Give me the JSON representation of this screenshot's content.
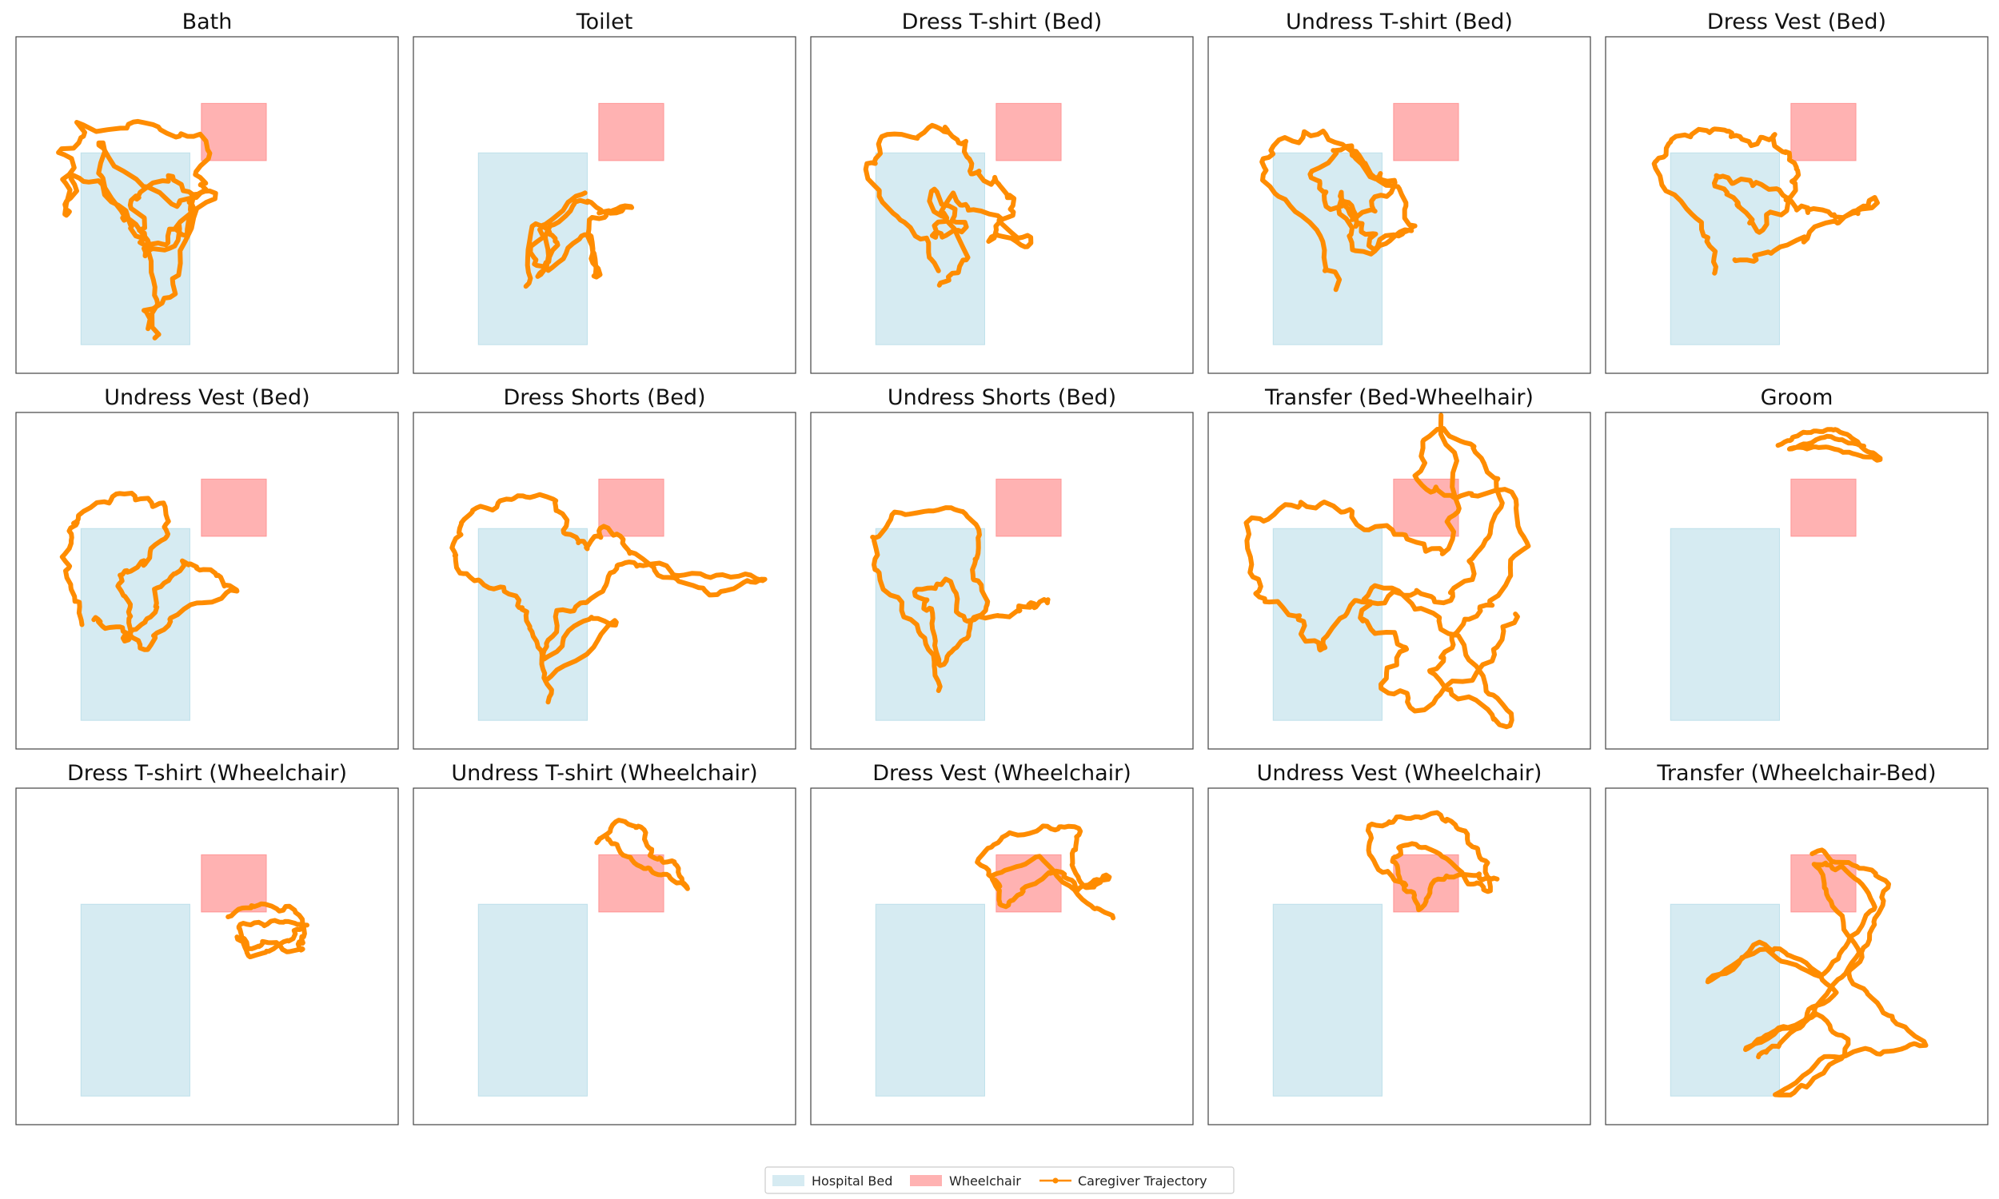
{
  "colors": {
    "bed": "#add8e6",
    "wheelchair": "#ff7f7f",
    "trajectory": "#ff8c00",
    "frame": "#444444"
  },
  "legend": {
    "bed_label": "Hospital Bed",
    "wheelchair_label": "Wheelchair",
    "trajectory_label": "Caregiver Trajectory"
  },
  "chart_data": [
    {
      "type": "line",
      "title": "Bath",
      "anchors": [
        [
          0.38,
          0.92
        ],
        [
          0.36,
          0.7
        ],
        [
          0.3,
          0.55
        ],
        [
          0.18,
          0.4
        ],
        [
          0.13,
          0.55
        ],
        [
          0.12,
          0.35
        ],
        [
          0.18,
          0.28
        ],
        [
          0.36,
          0.26
        ],
        [
          0.48,
          0.32
        ],
        [
          0.5,
          0.45
        ],
        [
          0.44,
          0.58
        ],
        [
          0.34,
          0.62
        ],
        [
          0.3,
          0.48
        ],
        [
          0.4,
          0.42
        ],
        [
          0.46,
          0.5
        ],
        [
          0.36,
          0.66
        ],
        [
          0.28,
          0.52
        ],
        [
          0.2,
          0.3
        ],
        [
          0.38,
          0.5
        ],
        [
          0.52,
          0.44
        ],
        [
          0.4,
          0.72
        ],
        [
          0.34,
          0.88
        ]
      ],
      "jitter": 0.07,
      "seed": 11
    },
    {
      "type": "line",
      "title": "Toilet",
      "anchors": [
        [
          0.3,
          0.75
        ],
        [
          0.32,
          0.55
        ],
        [
          0.38,
          0.6
        ],
        [
          0.34,
          0.72
        ],
        [
          0.31,
          0.62
        ],
        [
          0.44,
          0.48
        ],
        [
          0.5,
          0.52
        ],
        [
          0.57,
          0.5
        ],
        [
          0.46,
          0.55
        ],
        [
          0.48,
          0.72
        ],
        [
          0.47,
          0.58
        ],
        [
          0.36,
          0.7
        ],
        [
          0.33,
          0.56
        ],
        [
          0.45,
          0.46
        ]
      ],
      "jitter": 0.035,
      "seed": 23
    },
    {
      "type": "line",
      "title": "Dress T-shirt (Bed)",
      "anchors": [
        [
          0.35,
          0.7
        ],
        [
          0.26,
          0.55
        ],
        [
          0.15,
          0.4
        ],
        [
          0.2,
          0.3
        ],
        [
          0.34,
          0.26
        ],
        [
          0.38,
          0.3
        ],
        [
          0.42,
          0.4
        ],
        [
          0.5,
          0.44
        ],
        [
          0.54,
          0.5
        ],
        [
          0.46,
          0.6
        ],
        [
          0.58,
          0.62
        ],
        [
          0.46,
          0.52
        ],
        [
          0.36,
          0.48
        ],
        [
          0.32,
          0.6
        ],
        [
          0.4,
          0.56
        ],
        [
          0.3,
          0.46
        ],
        [
          0.42,
          0.66
        ],
        [
          0.34,
          0.74
        ]
      ],
      "jitter": 0.05,
      "seed": 37
    },
    {
      "type": "line",
      "title": "Undress T-shirt (Bed)",
      "anchors": [
        [
          0.34,
          0.74
        ],
        [
          0.28,
          0.6
        ],
        [
          0.14,
          0.42
        ],
        [
          0.16,
          0.32
        ],
        [
          0.3,
          0.28
        ],
        [
          0.4,
          0.36
        ],
        [
          0.48,
          0.46
        ],
        [
          0.4,
          0.54
        ],
        [
          0.32,
          0.5
        ],
        [
          0.28,
          0.4
        ],
        [
          0.36,
          0.32
        ],
        [
          0.42,
          0.4
        ],
        [
          0.5,
          0.44
        ],
        [
          0.54,
          0.56
        ],
        [
          0.44,
          0.62
        ],
        [
          0.4,
          0.55
        ],
        [
          0.34,
          0.46
        ],
        [
          0.38,
          0.66
        ],
        [
          0.54,
          0.58
        ]
      ],
      "jitter": 0.05,
      "seed": 41
    },
    {
      "type": "line",
      "title": "Dress Vest (Bed)",
      "anchors": [
        [
          0.3,
          0.72
        ],
        [
          0.26,
          0.58
        ],
        [
          0.14,
          0.4
        ],
        [
          0.18,
          0.3
        ],
        [
          0.3,
          0.26
        ],
        [
          0.36,
          0.32
        ],
        [
          0.44,
          0.3
        ],
        [
          0.5,
          0.38
        ],
        [
          0.48,
          0.48
        ],
        [
          0.4,
          0.58
        ],
        [
          0.34,
          0.5
        ],
        [
          0.28,
          0.42
        ],
        [
          0.4,
          0.44
        ],
        [
          0.52,
          0.52
        ],
        [
          0.62,
          0.54
        ],
        [
          0.72,
          0.48
        ],
        [
          0.56,
          0.58
        ],
        [
          0.44,
          0.64
        ],
        [
          0.34,
          0.66
        ]
      ],
      "jitter": 0.05,
      "seed": 53
    },
    {
      "type": "line",
      "title": "Undress Vest (Bed)",
      "anchors": [
        [
          0.18,
          0.62
        ],
        [
          0.14,
          0.5
        ],
        [
          0.13,
          0.38
        ],
        [
          0.16,
          0.3
        ],
        [
          0.28,
          0.24
        ],
        [
          0.38,
          0.27
        ],
        [
          0.4,
          0.36
        ],
        [
          0.34,
          0.44
        ],
        [
          0.26,
          0.48
        ],
        [
          0.3,
          0.58
        ],
        [
          0.28,
          0.68
        ],
        [
          0.34,
          0.62
        ],
        [
          0.38,
          0.52
        ],
        [
          0.44,
          0.44
        ],
        [
          0.5,
          0.48
        ],
        [
          0.58,
          0.53
        ],
        [
          0.4,
          0.6
        ],
        [
          0.34,
          0.7
        ],
        [
          0.26,
          0.64
        ],
        [
          0.2,
          0.62
        ]
      ],
      "jitter": 0.04,
      "seed": 61
    },
    {
      "type": "line",
      "title": "Dress Shorts (Bed)",
      "anchors": [
        [
          0.36,
          0.86
        ],
        [
          0.33,
          0.72
        ],
        [
          0.3,
          0.62
        ],
        [
          0.26,
          0.54
        ],
        [
          0.14,
          0.5
        ],
        [
          0.1,
          0.4
        ],
        [
          0.14,
          0.3
        ],
        [
          0.24,
          0.26
        ],
        [
          0.36,
          0.24
        ],
        [
          0.4,
          0.36
        ],
        [
          0.46,
          0.4
        ],
        [
          0.5,
          0.34
        ],
        [
          0.56,
          0.4
        ],
        [
          0.66,
          0.5
        ],
        [
          0.8,
          0.54
        ],
        [
          0.92,
          0.49
        ],
        [
          0.76,
          0.49
        ],
        [
          0.62,
          0.46
        ],
        [
          0.54,
          0.44
        ],
        [
          0.48,
          0.54
        ],
        [
          0.38,
          0.6
        ],
        [
          0.34,
          0.74
        ],
        [
          0.44,
          0.62
        ],
        [
          0.54,
          0.62
        ],
        [
          0.34,
          0.8
        ]
      ],
      "jitter": 0.035,
      "seed": 71
    },
    {
      "type": "line",
      "title": "Undress Shorts (Bed)",
      "anchors": [
        [
          0.34,
          0.82
        ],
        [
          0.3,
          0.68
        ],
        [
          0.2,
          0.52
        ],
        [
          0.16,
          0.38
        ],
        [
          0.22,
          0.3
        ],
        [
          0.36,
          0.28
        ],
        [
          0.44,
          0.34
        ],
        [
          0.42,
          0.46
        ],
        [
          0.46,
          0.56
        ],
        [
          0.4,
          0.68
        ],
        [
          0.34,
          0.76
        ],
        [
          0.32,
          0.6
        ],
        [
          0.28,
          0.54
        ],
        [
          0.36,
          0.5
        ],
        [
          0.4,
          0.62
        ],
        [
          0.52,
          0.6
        ],
        [
          0.58,
          0.58
        ],
        [
          0.62,
          0.56
        ]
      ],
      "jitter": 0.035,
      "seed": 83
    },
    {
      "type": "line",
      "title": "Transfer (Bed-Wheelhair)",
      "anchors": [
        [
          0.62,
          0.02
        ],
        [
          0.66,
          0.3
        ],
        [
          0.62,
          0.42
        ],
        [
          0.5,
          0.38
        ],
        [
          0.36,
          0.3
        ],
        [
          0.22,
          0.26
        ],
        [
          0.1,
          0.34
        ],
        [
          0.12,
          0.54
        ],
        [
          0.22,
          0.6
        ],
        [
          0.28,
          0.72
        ],
        [
          0.36,
          0.58
        ],
        [
          0.52,
          0.52
        ],
        [
          0.62,
          0.56
        ],
        [
          0.7,
          0.44
        ],
        [
          0.76,
          0.3
        ],
        [
          0.72,
          0.1
        ],
        [
          0.58,
          0.06
        ],
        [
          0.54,
          0.2
        ],
        [
          0.64,
          0.26
        ],
        [
          0.78,
          0.24
        ],
        [
          0.82,
          0.4
        ],
        [
          0.74,
          0.56
        ],
        [
          0.66,
          0.64
        ],
        [
          0.58,
          0.78
        ],
        [
          0.68,
          0.86
        ],
        [
          0.8,
          0.94
        ],
        [
          0.72,
          0.8
        ],
        [
          0.6,
          0.6
        ],
        [
          0.44,
          0.52
        ],
        [
          0.4,
          0.62
        ],
        [
          0.52,
          0.7
        ],
        [
          0.46,
          0.8
        ],
        [
          0.56,
          0.88
        ],
        [
          0.74,
          0.74
        ],
        [
          0.8,
          0.6
        ]
      ],
      "jitter": 0.05,
      "seed": 97
    },
    {
      "type": "line",
      "title": "Groom",
      "anchors": [
        [
          0.45,
          0.1
        ],
        [
          0.52,
          0.06
        ],
        [
          0.6,
          0.05
        ],
        [
          0.66,
          0.09
        ],
        [
          0.72,
          0.14
        ],
        [
          0.64,
          0.12
        ],
        [
          0.56,
          0.1
        ],
        [
          0.48,
          0.11
        ],
        [
          0.58,
          0.07
        ],
        [
          0.68,
          0.1
        ]
      ],
      "jitter": 0.015,
      "seed": 101
    },
    {
      "type": "line",
      "title": "Dress T-shirt (Wheelchair)",
      "anchors": [
        [
          0.56,
          0.38
        ],
        [
          0.64,
          0.35
        ],
        [
          0.72,
          0.36
        ],
        [
          0.76,
          0.44
        ],
        [
          0.74,
          0.48
        ],
        [
          0.66,
          0.46
        ],
        [
          0.6,
          0.48
        ],
        [
          0.58,
          0.4
        ],
        [
          0.68,
          0.4
        ],
        [
          0.76,
          0.4
        ],
        [
          0.7,
          0.46
        ],
        [
          0.62,
          0.5
        ],
        [
          0.58,
          0.44
        ]
      ],
      "jitter": 0.03,
      "seed": 113
    },
    {
      "type": "line",
      "title": "Undress T-shirt (Wheelchair)",
      "anchors": [
        [
          0.48,
          0.16
        ],
        [
          0.54,
          0.1
        ],
        [
          0.6,
          0.12
        ],
        [
          0.62,
          0.2
        ],
        [
          0.68,
          0.22
        ],
        [
          0.72,
          0.3
        ],
        [
          0.66,
          0.26
        ],
        [
          0.6,
          0.24
        ],
        [
          0.54,
          0.18
        ],
        [
          0.5,
          0.14
        ]
      ],
      "jitter": 0.02,
      "seed": 127
    },
    {
      "type": "line",
      "title": "Dress Vest (Wheelchair)",
      "anchors": [
        [
          0.5,
          0.3
        ],
        [
          0.44,
          0.22
        ],
        [
          0.5,
          0.14
        ],
        [
          0.62,
          0.12
        ],
        [
          0.7,
          0.12
        ],
        [
          0.68,
          0.22
        ],
        [
          0.72,
          0.3
        ],
        [
          0.78,
          0.26
        ],
        [
          0.7,
          0.3
        ],
        [
          0.64,
          0.24
        ],
        [
          0.56,
          0.3
        ],
        [
          0.5,
          0.36
        ],
        [
          0.48,
          0.26
        ],
        [
          0.6,
          0.2
        ],
        [
          0.72,
          0.34
        ],
        [
          0.79,
          0.39
        ]
      ],
      "jitter": 0.025,
      "seed": 131
    },
    {
      "type": "line",
      "title": "Undress Vest (Wheelchair)",
      "anchors": [
        [
          0.52,
          0.28
        ],
        [
          0.44,
          0.24
        ],
        [
          0.42,
          0.12
        ],
        [
          0.5,
          0.09
        ],
        [
          0.6,
          0.08
        ],
        [
          0.66,
          0.12
        ],
        [
          0.72,
          0.2
        ],
        [
          0.74,
          0.3
        ],
        [
          0.68,
          0.28
        ],
        [
          0.62,
          0.2
        ],
        [
          0.52,
          0.16
        ],
        [
          0.48,
          0.22
        ],
        [
          0.52,
          0.3
        ],
        [
          0.56,
          0.36
        ],
        [
          0.6,
          0.26
        ],
        [
          0.7,
          0.26
        ],
        [
          0.76,
          0.27
        ]
      ],
      "jitter": 0.025,
      "seed": 139
    },
    {
      "type": "line",
      "title": "Transfer (Wheelchair-Bed)",
      "anchors": [
        [
          0.54,
          0.19
        ],
        [
          0.64,
          0.22
        ],
        [
          0.74,
          0.28
        ],
        [
          0.7,
          0.42
        ],
        [
          0.64,
          0.56
        ],
        [
          0.72,
          0.66
        ],
        [
          0.84,
          0.76
        ],
        [
          0.72,
          0.78
        ],
        [
          0.58,
          0.8
        ],
        [
          0.44,
          0.92
        ],
        [
          0.54,
          0.88
        ],
        [
          0.64,
          0.76
        ],
        [
          0.56,
          0.68
        ],
        [
          0.44,
          0.72
        ],
        [
          0.36,
          0.78
        ],
        [
          0.5,
          0.7
        ],
        [
          0.6,
          0.6
        ],
        [
          0.5,
          0.5
        ],
        [
          0.4,
          0.46
        ],
        [
          0.26,
          0.58
        ],
        [
          0.4,
          0.48
        ],
        [
          0.56,
          0.56
        ],
        [
          0.64,
          0.46
        ],
        [
          0.7,
          0.34
        ],
        [
          0.62,
          0.24
        ],
        [
          0.54,
          0.22
        ],
        [
          0.6,
          0.36
        ],
        [
          0.66,
          0.5
        ],
        [
          0.56,
          0.64
        ],
        [
          0.46,
          0.76
        ],
        [
          0.4,
          0.8
        ]
      ],
      "jitter": 0.03,
      "seed": 149
    }
  ]
}
